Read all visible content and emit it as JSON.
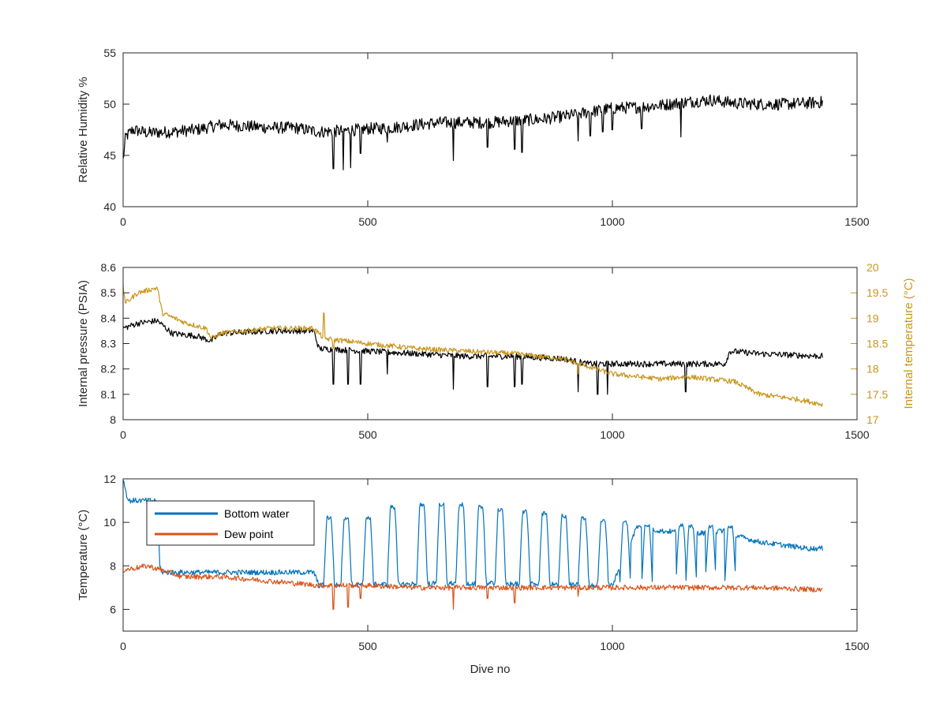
{
  "figure": {
    "background": "#ffffff",
    "axis_color": "#262626"
  },
  "chart_data": [
    {
      "type": "line",
      "xlabel": "",
      "ylabel": "Relative Humidity %",
      "xlim": [
        0,
        1500
      ],
      "ylim": [
        40,
        55
      ],
      "xticks": [
        "0",
        "500",
        "1000",
        "1500"
      ],
      "yticks": [
        "40",
        "45",
        "50",
        "55"
      ],
      "grid": false,
      "series": [
        {
          "color": "#000000",
          "noise": 0.6,
          "points": [
            [
              0,
              44.5
            ],
            [
              5,
              46.8
            ],
            [
              20,
              47.5
            ],
            [
              50,
              47.2
            ],
            [
              100,
              47.3
            ],
            [
              150,
              47.5
            ],
            [
              200,
              48
            ],
            [
              300,
              47.7
            ],
            [
              350,
              47.7
            ],
            [
              400,
              47.3
            ],
            [
              450,
              47.4
            ],
            [
              500,
              47.6
            ],
            [
              550,
              47.7
            ],
            [
              600,
              48
            ],
            [
              650,
              48.2
            ],
            [
              700,
              48.2
            ],
            [
              750,
              48.2
            ],
            [
              800,
              48.4
            ],
            [
              850,
              48.5
            ],
            [
              900,
              48.8
            ],
            [
              950,
              49.2
            ],
            [
              1000,
              49.6
            ],
            [
              1050,
              49.7
            ],
            [
              1100,
              49.9
            ],
            [
              1150,
              50.2
            ],
            [
              1200,
              50.4
            ],
            [
              1250,
              50.1
            ],
            [
              1300,
              50
            ],
            [
              1350,
              50
            ],
            [
              1400,
              50.1
            ],
            [
              1430,
              50.2
            ]
          ],
          "dips": [
            [
              430,
              43.7
            ],
            [
              450,
              43.6
            ],
            [
              465,
              43.8
            ],
            [
              485,
              45.2
            ],
            [
              540,
              46.3
            ],
            [
              675,
              44.5
            ],
            [
              745,
              45.8
            ],
            [
              800,
              45.6
            ],
            [
              815,
              45.3
            ],
            [
              930,
              46.4
            ],
            [
              955,
              46.9
            ],
            [
              980,
              47.3
            ],
            [
              1000,
              47.5
            ],
            [
              1060,
              47.6
            ],
            [
              1140,
              46.8
            ]
          ]
        }
      ]
    },
    {
      "type": "line",
      "xlabel": "",
      "ylabel": "Internal pressure (PSIA)",
      "y2label": "Internal temperature (°C)",
      "xlim": [
        0,
        1500
      ],
      "ylim": [
        8,
        8.6
      ],
      "y2lim": [
        17,
        20
      ],
      "xticks": [
        "0",
        "500",
        "1000",
        "1500"
      ],
      "yticks": [
        "8",
        "8.1",
        "8.2",
        "8.3",
        "8.4",
        "8.5",
        "8.6"
      ],
      "y2ticks": [
        "17",
        "17.5",
        "18",
        "18.5",
        "19",
        "19.5",
        "20"
      ],
      "y2color": "#c8961e",
      "grid": false,
      "series": [
        {
          "axis": "left",
          "color": "#000000",
          "noise": 0.012,
          "points": [
            [
              0,
              8.36
            ],
            [
              30,
              8.38
            ],
            [
              70,
              8.39
            ],
            [
              100,
              8.34
            ],
            [
              150,
              8.33
            ],
            [
              180,
              8.31
            ],
            [
              200,
              8.34
            ],
            [
              300,
              8.35
            ],
            [
              390,
              8.35
            ],
            [
              400,
              8.28
            ],
            [
              500,
              8.27
            ],
            [
              600,
              8.26
            ],
            [
              700,
              8.25
            ],
            [
              800,
              8.25
            ],
            [
              900,
              8.24
            ],
            [
              950,
              8.22
            ],
            [
              1000,
              8.22
            ],
            [
              1100,
              8.22
            ],
            [
              1200,
              8.22
            ],
            [
              1230,
              8.22
            ],
            [
              1240,
              8.27
            ],
            [
              1300,
              8.26
            ],
            [
              1430,
              8.25
            ]
          ],
          "dips": [
            [
              430,
              8.14
            ],
            [
              460,
              8.14
            ],
            [
              485,
              8.14
            ],
            [
              540,
              8.18
            ],
            [
              675,
              8.12
            ],
            [
              745,
              8.13
            ],
            [
              800,
              8.13
            ],
            [
              815,
              8.14
            ],
            [
              930,
              8.11
            ],
            [
              970,
              8.1
            ],
            [
              990,
              8.1
            ],
            [
              1150,
              8.11
            ]
          ]
        },
        {
          "axis": "right",
          "color": "#c8961e",
          "noise": 0.05,
          "points": [
            [
              0,
              19.6
            ],
            [
              5,
              19.3
            ],
            [
              30,
              19.5
            ],
            [
              70,
              19.6
            ],
            [
              80,
              19.1
            ],
            [
              130,
              18.9
            ],
            [
              170,
              18.8
            ],
            [
              180,
              18.6
            ],
            [
              200,
              18.7
            ],
            [
              300,
              18.8
            ],
            [
              390,
              18.8
            ],
            [
              410,
              18.6
            ],
            [
              500,
              18.5
            ],
            [
              600,
              18.4
            ],
            [
              700,
              18.35
            ],
            [
              800,
              18.3
            ],
            [
              900,
              18.2
            ],
            [
              950,
              18.05
            ],
            [
              1000,
              17.9
            ],
            [
              1100,
              17.8
            ],
            [
              1150,
              17.85
            ],
            [
              1200,
              17.8
            ],
            [
              1250,
              17.75
            ],
            [
              1300,
              17.5
            ],
            [
              1380,
              17.4
            ],
            [
              1430,
              17.3
            ]
          ],
          "dips": [
            [
              410,
              19.1
            ],
            [
              430,
              18.4
            ],
            [
              930,
              17.9
            ]
          ]
        }
      ]
    },
    {
      "type": "line",
      "xlabel": "Dive no",
      "ylabel": "Temperature (°C)",
      "xlim": [
        0,
        1500
      ],
      "ylim": [
        5,
        12
      ],
      "xticks": [
        "0",
        "500",
        "1000",
        "1500"
      ],
      "yticks": [
        "6",
        "8",
        "10",
        "12"
      ],
      "grid": false,
      "legend": {
        "placement": "top-left",
        "entries": [
          {
            "label": "Bottom water",
            "color": "#0072bd"
          },
          {
            "label": "Dew point",
            "color": "#d95319"
          }
        ]
      },
      "series": [
        {
          "name": "Bottom water",
          "color": "#0072bd",
          "noise": 0.12,
          "points": [
            [
              0,
              12
            ],
            [
              10,
              11
            ],
            [
              40,
              11
            ],
            [
              70,
              11
            ],
            [
              75,
              8
            ],
            [
              80,
              7.7
            ],
            [
              390,
              7.7
            ],
            [
              400,
              7.1
            ],
            [
              700,
              7.2
            ],
            [
              1000,
              7.1
            ],
            [
              1050,
              9.8
            ],
            [
              1100,
              9.6
            ],
            [
              1200,
              9.5
            ],
            [
              1240,
              9.7
            ],
            [
              1250,
              9.4
            ],
            [
              1300,
              9.1
            ],
            [
              1400,
              8.8
            ],
            [
              1430,
              8.8
            ]
          ],
          "pulses": [
            [
              410,
              7.0,
              10.2
            ],
            [
              445,
              7.0,
              10.2
            ],
            [
              490,
              7.0,
              10.2
            ],
            [
              540,
              7.1,
              10.7
            ],
            [
              600,
              7.1,
              10.8
            ],
            [
              640,
              7.1,
              10.8
            ],
            [
              680,
              7.1,
              10.8
            ],
            [
              720,
              7.1,
              10.7
            ],
            [
              760,
              7.1,
              10.6
            ],
            [
              810,
              7.1,
              10.5
            ],
            [
              850,
              7.1,
              10.4
            ],
            [
              890,
              7.1,
              10.3
            ],
            [
              930,
              7.1,
              10.2
            ],
            [
              970,
              7.1,
              10.1
            ],
            [
              1015,
              7.1,
              10.0
            ],
            [
              1060,
              7.1,
              9.9
            ],
            [
              1130,
              7.2,
              9.9
            ],
            [
              1150,
              7.2,
              9.8
            ],
            [
              1190,
              7.2,
              9.8
            ],
            [
              1230,
              7.3,
              9.8
            ]
          ]
        },
        {
          "name": "Dew point",
          "color": "#d95319",
          "noise": 0.12,
          "points": [
            [
              0,
              7.8
            ],
            [
              50,
              8
            ],
            [
              80,
              7.8
            ],
            [
              120,
              7.5
            ],
            [
              200,
              7.5
            ],
            [
              300,
              7.3
            ],
            [
              400,
              7.1
            ],
            [
              500,
              7.1
            ],
            [
              600,
              7.0
            ],
            [
              700,
              7.0
            ],
            [
              800,
              7.0
            ],
            [
              900,
              7.0
            ],
            [
              1000,
              7.0
            ],
            [
              1100,
              7.0
            ],
            [
              1200,
              7.0
            ],
            [
              1300,
              7.0
            ],
            [
              1430,
              6.9
            ]
          ],
          "dips": [
            [
              430,
              6.0
            ],
            [
              460,
              6.1
            ],
            [
              485,
              6.5
            ],
            [
              675,
              6.0
            ],
            [
              745,
              6.5
            ],
            [
              800,
              6.3
            ],
            [
              930,
              6.6
            ]
          ]
        }
      ]
    }
  ]
}
